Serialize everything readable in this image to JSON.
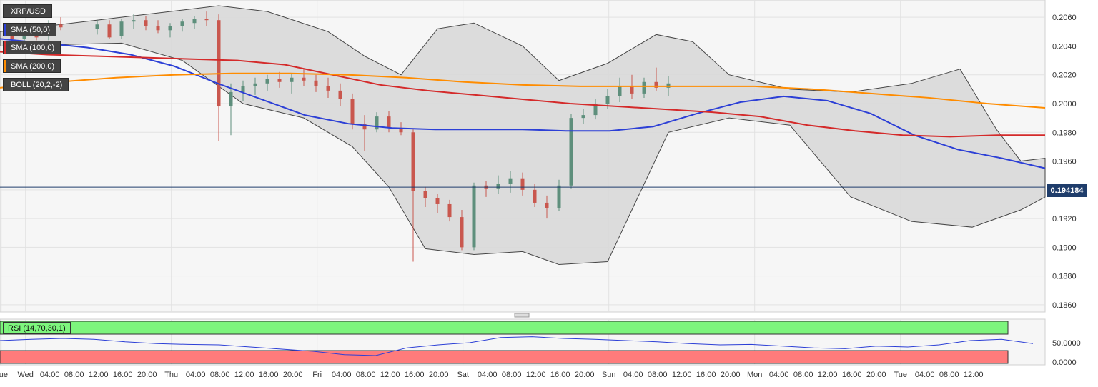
{
  "symbol": "XRP/USD",
  "current_price": "0.194184",
  "legend": [
    {
      "label": "SMA (50,0)",
      "color": "#2c3fd6"
    },
    {
      "label": "SMA (100,0)",
      "color": "#d42a2a"
    },
    {
      "label": "SMA (200,0)",
      "color": "#ff8c00"
    },
    {
      "label": "BOLL (20,2,-2)",
      "color": "#444444"
    }
  ],
  "rsi_label": "RSI (14,70,30,1)",
  "colors": {
    "bull": "#5e8f7c",
    "bear": "#c9574e",
    "rsi_line": "#2c3fd6",
    "overbought": "#7df57d",
    "oversold": "#ff7b7b",
    "bands_fill": "#dadada"
  },
  "chart_data": [
    {
      "type": "line",
      "title": "XRP/USD",
      "subtitle": "",
      "xlabel": "",
      "ylabel": "",
      "x_ticks": [
        "Tue",
        "Wed",
        "04:00",
        "08:00",
        "12:00",
        "16:00",
        "20:00",
        "Thu",
        "04:00",
        "08:00",
        "12:00",
        "16:00",
        "20:00",
        "Fri",
        "04:00",
        "08:00",
        "12:00",
        "16:00",
        "20:00",
        "Sat",
        "04:00",
        "08:00",
        "12:00",
        "16:00",
        "20:00",
        "Sun",
        "04:00",
        "08:00",
        "12:00",
        "16:00",
        "20:00",
        "Mon",
        "04:00",
        "08:00",
        "12:00",
        "16:00",
        "20:00",
        "Tue",
        "04:00",
        "08:00",
        "12:00"
      ],
      "y_ticks": [
        "0.2060",
        "0.2040",
        "0.2020",
        "0.2000",
        "0.1980",
        "0.1960",
        "0.1940",
        "0.1920",
        "0.1900",
        "0.1880",
        "0.1860"
      ],
      "ylim": [
        0.1855,
        0.2072
      ],
      "x_range_hours": [
        0,
        172
      ],
      "grid": true,
      "candles": [
        [
          16.0,
          0.2052,
          0.2058,
          0.2048,
          0.2055
        ],
        [
          18.0,
          0.2055,
          0.2058,
          0.2045,
          0.2046
        ],
        [
          20.0,
          0.2047,
          0.2059,
          0.2045,
          0.2057
        ],
        [
          22.0,
          0.2057,
          0.2062,
          0.2052,
          0.2058
        ],
        [
          24.0,
          0.2058,
          0.2061,
          0.2051,
          0.2054
        ],
        [
          2,
          0.2049,
          0.2053,
          0.204,
          0.2045
        ],
        [
          4,
          0.2045,
          0.2052,
          0.2041,
          0.2049
        ],
        [
          6,
          0.2049,
          0.2055,
          0.2044,
          0.2046
        ],
        [
          8,
          0.2047,
          0.2058,
          0.2044,
          0.2055
        ],
        [
          10,
          0.2055,
          0.206,
          0.2051,
          0.2053
        ],
        [
          26,
          0.2054,
          0.2058,
          0.2049,
          0.2051
        ],
        [
          28,
          0.2051,
          0.2056,
          0.2046,
          0.2054
        ],
        [
          30,
          0.2054,
          0.2059,
          0.205,
          0.2057
        ],
        [
          32,
          0.2056,
          0.2061,
          0.2052,
          0.2059
        ],
        [
          34,
          0.2059,
          0.2064,
          0.2054,
          0.2058
        ],
        [
          36,
          0.2058,
          0.2062,
          0.1974,
          0.1998
        ],
        [
          38,
          0.1998,
          0.2014,
          0.1978,
          0.2008
        ],
        [
          40,
          0.2008,
          0.2016,
          0.2002,
          0.2012
        ],
        [
          42,
          0.2012,
          0.2018,
          0.2006,
          0.2014
        ],
        [
          44,
          0.2014,
          0.202,
          0.2009,
          0.2017
        ],
        [
          46,
          0.2017,
          0.2022,
          0.2011,
          0.2015
        ],
        [
          48,
          0.2015,
          0.2021,
          0.2007,
          0.2018
        ],
        [
          50,
          0.2018,
          0.2024,
          0.2012,
          0.2016
        ],
        [
          52,
          0.2016,
          0.202,
          0.2008,
          0.2012
        ],
        [
          54,
          0.2012,
          0.2018,
          0.2004,
          0.2009
        ],
        [
          56,
          0.2009,
          0.2014,
          0.1998,
          0.2003
        ],
        [
          58,
          0.2003,
          0.2007,
          0.1982,
          0.1986
        ],
        [
          60,
          0.1986,
          0.1992,
          0.1967,
          0.1982
        ],
        [
          62,
          0.1982,
          0.1994,
          0.198,
          0.1991
        ],
        [
          64,
          0.1991,
          0.1995,
          0.198,
          0.1983
        ],
        [
          66,
          0.1983,
          0.1987,
          0.1978,
          0.198
        ],
        [
          68,
          0.198,
          0.1982,
          0.189,
          0.1939
        ],
        [
          70,
          0.1939,
          0.1942,
          0.1928,
          0.1934
        ],
        [
          72,
          0.1934,
          0.1937,
          0.1924,
          0.193
        ],
        [
          74,
          0.193,
          0.1933,
          0.1918,
          0.1921
        ],
        [
          76,
          0.1921,
          0.1926,
          0.1898,
          0.19
        ],
        [
          78,
          0.19,
          0.1945,
          0.1898,
          0.1943
        ],
        [
          80,
          0.1943,
          0.1946,
          0.1935,
          0.1941
        ],
        [
          82,
          0.1941,
          0.195,
          0.1937,
          0.1944
        ],
        [
          84,
          0.1944,
          0.1953,
          0.1938,
          0.1948
        ],
        [
          86,
          0.1948,
          0.1952,
          0.1936,
          0.194
        ],
        [
          88,
          0.194,
          0.1944,
          0.1928,
          0.1931
        ],
        [
          90,
          0.1931,
          0.1936,
          0.192,
          0.1927
        ],
        [
          92,
          0.1927,
          0.1947,
          0.1925,
          0.1943
        ],
        [
          94,
          0.1943,
          0.1993,
          0.1941,
          0.199
        ],
        [
          96,
          0.199,
          0.1996,
          0.1986,
          0.1992
        ],
        [
          98,
          0.1992,
          0.2003,
          0.1989,
          0.2
        ],
        [
          100,
          0.2,
          0.201,
          0.1996,
          0.2005
        ],
        [
          102,
          0.2005,
          0.2018,
          0.2001,
          0.2012
        ],
        [
          104,
          0.2012,
          0.202,
          0.2003,
          0.2007
        ],
        [
          106,
          0.2007,
          0.2018,
          0.2004,
          0.2015
        ],
        [
          108,
          0.2015,
          0.2025,
          0.2009,
          0.2011
        ],
        [
          110,
          0.2011,
          0.2019,
          0.2005,
          0.2014
        ]
      ],
      "series": [
        {
          "name": "SMA (50,0)",
          "values": [
            0.2045,
            0.2042,
            0.2039,
            0.2034,
            0.2026,
            0.2014,
            0.2003,
            0.1992,
            0.1986,
            0.1983,
            0.1982,
            0.1982,
            0.1982,
            0.1981,
            0.1981,
            0.1984,
            0.1993,
            0.2001,
            0.2005,
            0.2002,
            0.1993,
            0.1978,
            0.1968,
            0.1962,
            0.1955
          ]
        },
        {
          "name": "SMA (100,0)",
          "values": [
            0.2036,
            0.2034,
            0.2033,
            0.2032,
            0.2031,
            0.203,
            0.2027,
            0.202,
            0.2013,
            0.2009,
            0.2006,
            0.2003,
            0.2,
            0.1998,
            0.1996,
            0.1994,
            0.1991,
            0.1985,
            0.1981,
            0.1978,
            0.1977,
            0.1978,
            0.1978
          ]
        },
        {
          "name": "SMA (200,0)",
          "values": [
            0.2011,
            0.2015,
            0.2018,
            0.202,
            0.2021,
            0.2021,
            0.202,
            0.2018,
            0.2015,
            0.2013,
            0.2012,
            0.2012,
            0.2012,
            0.2012,
            0.201,
            0.2007,
            0.2004,
            0.2,
            0.1997
          ]
        }
      ]
    },
    {
      "type": "line",
      "title": "RSI (14,70,30,1)",
      "y_ticks": [
        "50.0000",
        "0.0000"
      ],
      "series": [
        {
          "name": "RSI (14,70,30,1)",
          "values": [
            55,
            58,
            60,
            58,
            52,
            48,
            46,
            45,
            40,
            35,
            30,
            22,
            20,
            38,
            45,
            50,
            62,
            64,
            60,
            58,
            55,
            52,
            48,
            45,
            46,
            42,
            38,
            36,
            42,
            40,
            45,
            55,
            58,
            48
          ]
        }
      ]
    }
  ]
}
